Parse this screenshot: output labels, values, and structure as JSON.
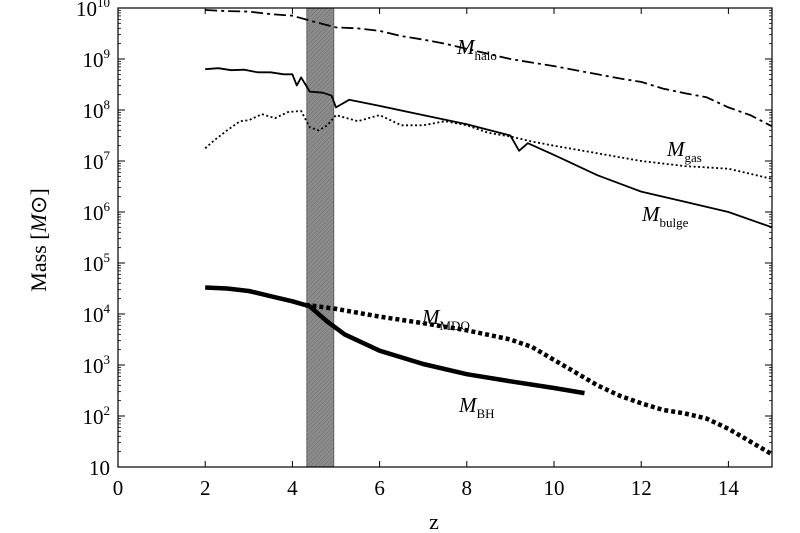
{
  "chart_data": {
    "type": "line",
    "xlabel": "z",
    "ylabel_text": "Mass [",
    "ylabel_sym": "M",
    "ylabel_sun": "⊙",
    "ylabel_close": "]",
    "xlim": [
      0,
      15
    ],
    "ylim_log10": [
      1,
      10
    ],
    "y_scale": "log",
    "grid": false,
    "x_ticks": [
      0,
      2,
      4,
      6,
      8,
      10,
      12,
      14
    ],
    "y_ticks": [
      {
        "exp": 1,
        "text": "10",
        "sup": ""
      },
      {
        "exp": 2,
        "text": "10",
        "sup": "2"
      },
      {
        "exp": 3,
        "text": "10",
        "sup": "3"
      },
      {
        "exp": 4,
        "text": "10",
        "sup": "4"
      },
      {
        "exp": 5,
        "text": "10",
        "sup": "5"
      },
      {
        "exp": 6,
        "text": "10",
        "sup": "6"
      },
      {
        "exp": 7,
        "text": "10",
        "sup": "7"
      },
      {
        "exp": 8,
        "text": "10",
        "sup": "8"
      },
      {
        "exp": 9,
        "text": "10",
        "sup": "9"
      },
      {
        "exp": 10,
        "text": "10",
        "sup": "10"
      }
    ],
    "shaded_band": {
      "x": [
        4.33,
        4.95
      ],
      "color": "#8c8c8c"
    },
    "series": [
      {
        "key": "halo",
        "label": "M",
        "sub": "halo",
        "style": "dashdot",
        "width": 1.8,
        "color": "#000000",
        "x": [
          2.0,
          2.5,
          3.0,
          3.5,
          4.0,
          4.5,
          5.0,
          5.5,
          6.0,
          6.5,
          7.0,
          7.5,
          8.0,
          8.5,
          9.0,
          9.5,
          10.0,
          10.5,
          11.0,
          11.5,
          12.0,
          12.5,
          13.0,
          13.5,
          14.0,
          14.5,
          15.0
        ],
        "y": [
          9.96,
          9.94,
          9.93,
          9.88,
          9.85,
          9.73,
          9.62,
          9.6,
          9.55,
          9.45,
          9.38,
          9.3,
          9.2,
          9.1,
          9.0,
          8.93,
          8.86,
          8.78,
          8.7,
          8.62,
          8.55,
          8.42,
          8.33,
          8.25,
          8.05,
          7.9,
          7.68
        ]
      },
      {
        "key": "bulge",
        "label": "M",
        "sub": "bulge",
        "style": "solid",
        "width": 1.8,
        "color": "#000000",
        "x": [
          2.0,
          2.3,
          2.6,
          2.9,
          3.2,
          3.5,
          3.8,
          4.0,
          4.1,
          4.2,
          4.4,
          4.7,
          4.9,
          5.0,
          5.3,
          6.0,
          7.0,
          8.0,
          9.0,
          9.2,
          9.4,
          10.0,
          11.0,
          12.0,
          13.0,
          14.0,
          15.0
        ],
        "y": [
          8.8,
          8.82,
          8.78,
          8.79,
          8.74,
          8.74,
          8.7,
          8.7,
          8.48,
          8.64,
          8.36,
          8.34,
          8.28,
          8.05,
          8.2,
          8.08,
          7.9,
          7.72,
          7.5,
          7.2,
          7.35,
          7.12,
          6.72,
          6.4,
          6.2,
          6.0,
          5.7
        ]
      },
      {
        "key": "gas",
        "label": "M",
        "sub": "gas",
        "style": "dotted",
        "width": 1.8,
        "color": "#000000",
        "x": [
          2.0,
          2.2,
          2.5,
          2.8,
          3.0,
          3.3,
          3.6,
          3.9,
          4.2,
          4.4,
          4.6,
          4.8,
          5.0,
          5.5,
          6.0,
          6.5,
          7.0,
          7.5,
          8.0,
          8.5,
          9.0,
          9.5,
          10.0,
          11.0,
          12.0,
          13.0,
          14.0,
          15.0
        ],
        "y": [
          7.25,
          7.4,
          7.6,
          7.78,
          7.8,
          7.92,
          7.84,
          7.96,
          7.98,
          7.66,
          7.6,
          7.7,
          7.9,
          7.78,
          7.9,
          7.7,
          7.7,
          7.78,
          7.7,
          7.55,
          7.48,
          7.38,
          7.3,
          7.15,
          7.0,
          6.9,
          6.85,
          6.65
        ]
      },
      {
        "key": "mdo",
        "label": "M",
        "sub": "MDO",
        "style": "dotted",
        "width": 4.5,
        "color": "#000000",
        "x": [
          4.3,
          5.0,
          6.0,
          7.0,
          8.0,
          9.0,
          9.5,
          10.0,
          10.5,
          11.0,
          11.5,
          12.0,
          12.5,
          13.0,
          13.5,
          14.0,
          14.5,
          15.0
        ],
        "y": [
          4.18,
          4.1,
          3.95,
          3.82,
          3.68,
          3.5,
          3.35,
          3.1,
          2.85,
          2.6,
          2.4,
          2.25,
          2.12,
          2.05,
          1.95,
          1.75,
          1.5,
          1.25
        ]
      },
      {
        "key": "bh",
        "label": "M",
        "sub": "BH",
        "style": "solid",
        "width": 4.5,
        "color": "#000000",
        "x": [
          2.0,
          2.5,
          3.0,
          3.5,
          4.0,
          4.4,
          4.8,
          5.2,
          6.0,
          7.0,
          8.0,
          9.0,
          10.0,
          10.7
        ],
        "y": [
          4.52,
          4.5,
          4.45,
          4.35,
          4.25,
          4.15,
          3.85,
          3.6,
          3.28,
          3.02,
          2.82,
          2.68,
          2.55,
          2.45
        ]
      }
    ]
  },
  "labels": {
    "halo": {
      "text": "M",
      "sub": "halo"
    },
    "gas": {
      "text": "M",
      "sub": "gas"
    },
    "bulge": {
      "text": "M",
      "sub": "bulge"
    },
    "mdo": {
      "text": "M",
      "sub": "MDO"
    },
    "bh": {
      "text": "M",
      "sub": "BH"
    }
  }
}
